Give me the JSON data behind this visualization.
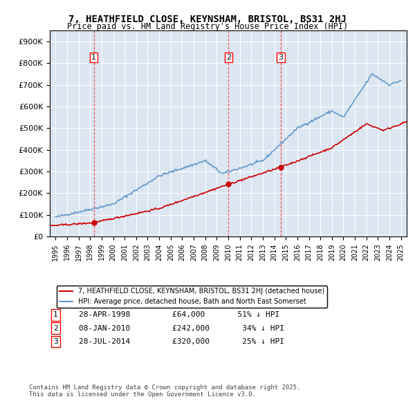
{
  "title": "7, HEATHFIELD CLOSE, KEYNSHAM, BRISTOL, BS31 2HJ",
  "subtitle": "Price paid vs. HM Land Registry's House Price Index (HPI)",
  "xlabel": "",
  "ylabel": "",
  "legend_line1": "7, HEATHFIELD CLOSE, KEYNSHAM, BRISTOL, BS31 2HJ (detached house)",
  "legend_line2": "HPI: Average price, detached house, Bath and North East Somerset",
  "footer": "Contains HM Land Registry data © Crown copyright and database right 2025.\nThis data is licensed under the Open Government Licence v3.0.",
  "sale_color": "#cc0000",
  "hpi_color": "#6699cc",
  "background_color": "#dce6f1",
  "transactions": [
    {
      "label": "1",
      "date_str": "28-APR-1998",
      "date_num": 1998.32,
      "price": 64000,
      "note": "51% ↓ HPI"
    },
    {
      "label": "2",
      "date_str": "08-JAN-2010",
      "date_num": 2010.02,
      "price": 242000,
      "note": "34% ↓ HPI"
    },
    {
      "label": "3",
      "date_str": "28-JUL-2014",
      "date_num": 2014.57,
      "price": 320000,
      "note": "25% ↓ HPI"
    }
  ],
  "ylim": [
    0,
    950000
  ],
  "yticks": [
    0,
    100000,
    200000,
    300000,
    400000,
    500000,
    600000,
    700000,
    800000,
    900000
  ],
  "xlim_start": 1994.5,
  "xlim_end": 2025.5
}
